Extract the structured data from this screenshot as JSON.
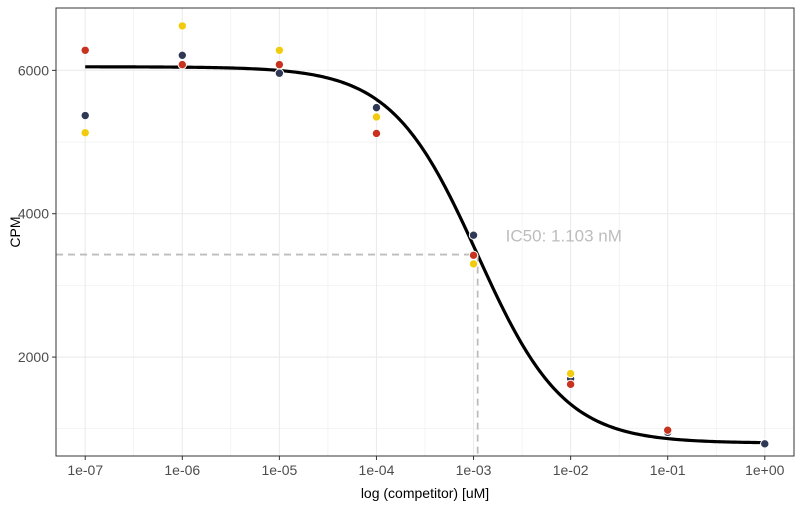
{
  "chart_data": {
    "type": "scatter",
    "title": "",
    "xlabel": "log (competitor) [uM]",
    "ylabel": "CPM",
    "x_scale": "log10",
    "x_ticks": [
      1e-07,
      1e-06,
      1e-05,
      0.0001,
      0.001,
      0.01,
      0.1,
      1
    ],
    "x_tick_labels": [
      "1e-07",
      "1e-06",
      "1e-05",
      "1e-04",
      "1e-03",
      "1e-02",
      "1e-01",
      "1e+00"
    ],
    "y_ticks": [
      2000,
      4000,
      6000
    ],
    "y_tick_labels": [
      "2000",
      "4000",
      "6000"
    ],
    "xlim": [
      5e-08,
      2.0
    ],
    "ylim": [
      620,
      6870
    ],
    "grid": true,
    "legend": "none",
    "colors": {
      "series_navy": "#2f3854",
      "series_red": "#c8321e",
      "series_yellow": "#f2cc0c",
      "fit_line": "#000000",
      "ic50_guide": "#bdbdbd",
      "annotation": "#bdbdbd",
      "grid": "#ebebeb",
      "panel_border": "#333333"
    },
    "series": [
      {
        "color": "#2f3854",
        "points": [
          [
            1e-07,
            5370
          ],
          [
            1e-06,
            6210
          ],
          [
            1e-05,
            5960
          ],
          [
            0.0001,
            5480
          ],
          [
            0.001,
            3700
          ],
          [
            0.01,
            1700
          ],
          [
            0.1,
            950
          ],
          [
            1,
            790
          ]
        ]
      },
      {
        "color": "#c8321e",
        "points": [
          [
            1e-07,
            6280
          ],
          [
            1e-06,
            6080
          ],
          [
            1e-05,
            6080
          ],
          [
            0.0001,
            5120
          ],
          [
            0.001,
            3420
          ],
          [
            0.01,
            1620
          ],
          [
            0.1,
            980
          ]
        ]
      },
      {
        "color": "#f2cc0c",
        "points": [
          [
            1e-07,
            5130
          ],
          [
            1e-06,
            6620
          ],
          [
            1e-05,
            6280
          ],
          [
            0.0001,
            5350
          ],
          [
            0.001,
            3300
          ],
          [
            0.01,
            1770
          ]
        ]
      }
    ],
    "fit": {
      "model": "4PL",
      "top": 6050,
      "bottom": 800,
      "ec50": 0.001103,
      "hill": 0.98,
      "x_range": [
        1e-07,
        1
      ]
    },
    "ic50": {
      "x": 0.001103,
      "y": 3430,
      "label": "IC50: 1.103 nM"
    }
  }
}
